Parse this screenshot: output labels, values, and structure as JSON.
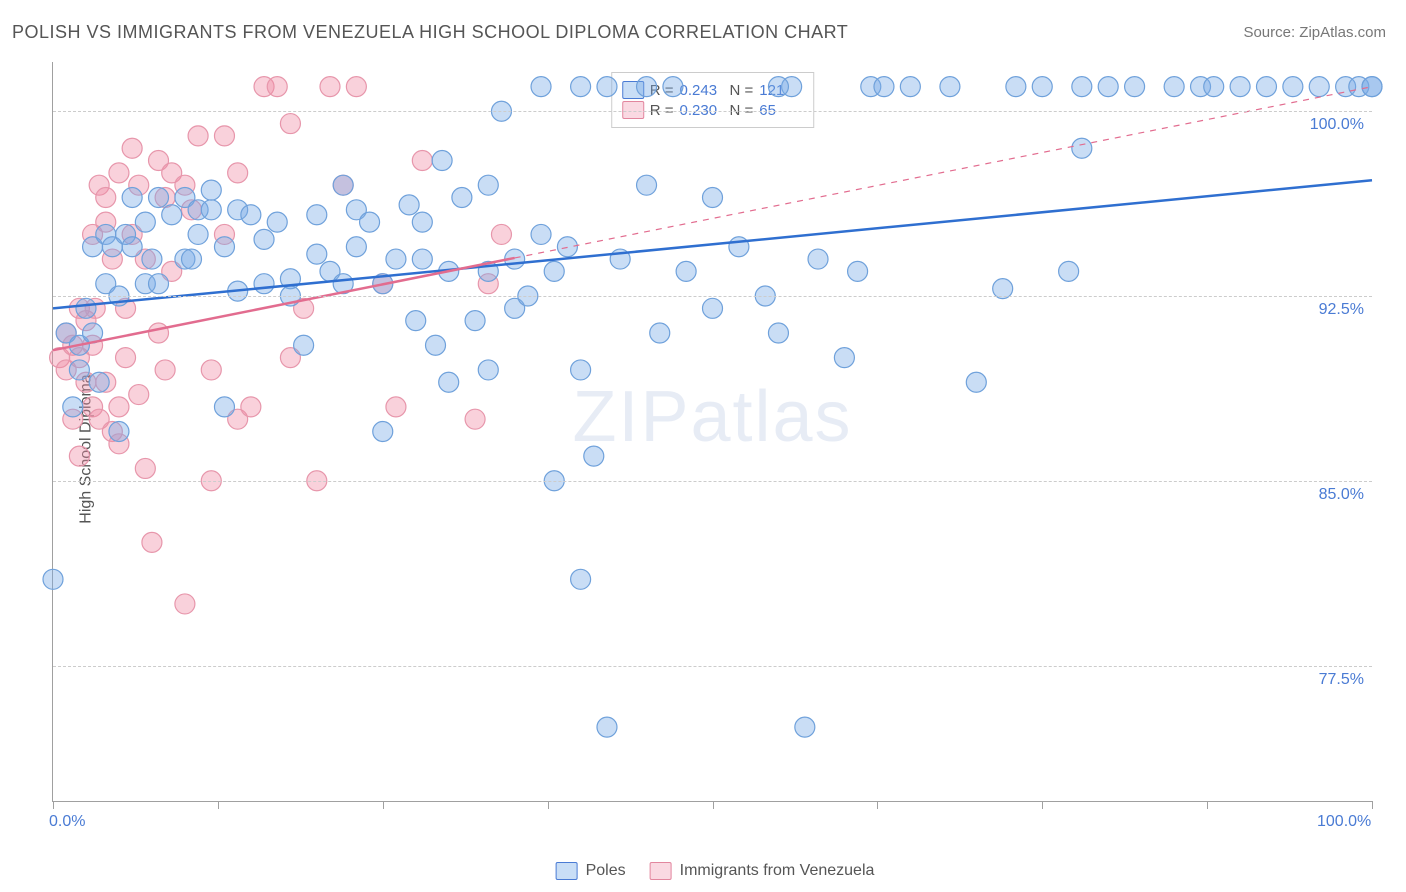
{
  "title": "POLISH VS IMMIGRANTS FROM VENEZUELA HIGH SCHOOL DIPLOMA CORRELATION CHART",
  "source_label": "Source: ZipAtlas.com",
  "y_axis_label": "High School Diploma",
  "watermark": "ZIPatlas",
  "chart": {
    "type": "scatter",
    "background_color": "#ffffff",
    "grid_color": "#cccccc",
    "axis_color": "#a0a0a0",
    "text_color_axis": "#4a7bd4",
    "text_color_label": "#555555",
    "xlim": [
      0,
      100
    ],
    "ylim": [
      72,
      102
    ],
    "x_ticks": [
      0,
      12.5,
      25,
      37.5,
      50,
      62.5,
      75,
      87.5,
      100
    ],
    "x_tick_labels": {
      "0": "0.0%",
      "100": "100.0%"
    },
    "y_ticks": [
      77.5,
      85.0,
      92.5,
      100.0
    ],
    "y_tick_labels": [
      "77.5%",
      "85.0%",
      "92.5%",
      "100.0%"
    ],
    "marker_radius": 10,
    "marker_opacity": 0.45,
    "line_width": 2.5,
    "series": [
      {
        "name": "Poles",
        "color_fill": "rgba(120,170,230,0.40)",
        "color_stroke": "#6fa1db",
        "line_color": "#2f6fd0",
        "R": "0.243",
        "N": "121",
        "trend": {
          "x1": 0,
          "y1": 92.0,
          "x2": 100,
          "y2": 97.2,
          "dash_from_x": null
        },
        "points": [
          [
            0,
            81
          ],
          [
            1,
            91
          ],
          [
            1.5,
            88
          ],
          [
            2,
            89.5
          ],
          [
            2,
            90.5
          ],
          [
            2.5,
            92
          ],
          [
            3,
            94.5
          ],
          [
            3,
            91
          ],
          [
            3.5,
            89
          ],
          [
            4,
            93
          ],
          [
            4,
            95
          ],
          [
            4.5,
            94.5
          ],
          [
            5,
            92.5
          ],
          [
            5,
            87
          ],
          [
            5.5,
            95
          ],
          [
            6,
            96.5
          ],
          [
            6,
            94.5
          ],
          [
            7,
            93
          ],
          [
            7,
            95.5
          ],
          [
            7.5,
            94
          ],
          [
            8,
            96.5
          ],
          [
            8,
            93
          ],
          [
            9,
            95.8
          ],
          [
            10,
            94
          ],
          [
            10,
            96.5
          ],
          [
            10.5,
            94
          ],
          [
            11,
            96
          ],
          [
            11,
            95
          ],
          [
            12,
            96
          ],
          [
            12,
            96.8
          ],
          [
            13,
            88
          ],
          [
            13,
            94.5
          ],
          [
            14,
            96
          ],
          [
            14,
            92.7
          ],
          [
            15,
            95.8
          ],
          [
            16,
            93
          ],
          [
            16,
            94.8
          ],
          [
            17,
            95.5
          ],
          [
            18,
            93.2
          ],
          [
            18,
            92.5
          ],
          [
            19,
            90.5
          ],
          [
            20,
            95.8
          ],
          [
            20,
            94.2
          ],
          [
            21,
            93.5
          ],
          [
            22,
            93.0
          ],
          [
            22,
            97
          ],
          [
            23,
            96
          ],
          [
            23,
            94.5
          ],
          [
            24,
            95.5
          ],
          [
            25,
            87
          ],
          [
            25,
            93.0
          ],
          [
            26,
            94
          ],
          [
            27,
            96.2
          ],
          [
            27.5,
            91.5
          ],
          [
            28,
            94
          ],
          [
            28,
            95.5
          ],
          [
            29,
            90.5
          ],
          [
            29.5,
            98
          ],
          [
            30,
            93.5
          ],
          [
            30,
            89
          ],
          [
            31,
            96.5
          ],
          [
            32,
            91.5
          ],
          [
            33,
            97
          ],
          [
            33,
            89.5
          ],
          [
            33,
            93.5
          ],
          [
            34,
            100
          ],
          [
            35,
            92
          ],
          [
            35,
            94
          ],
          [
            36,
            92.5
          ],
          [
            37,
            95
          ],
          [
            37,
            101
          ],
          [
            38,
            85
          ],
          [
            38,
            93.5
          ],
          [
            39,
            94.5
          ],
          [
            40,
            101
          ],
          [
            40,
            81
          ],
          [
            40,
            89.5
          ],
          [
            41,
            86
          ],
          [
            42,
            101
          ],
          [
            42,
            75
          ],
          [
            43,
            94
          ],
          [
            45,
            97
          ],
          [
            45,
            101
          ],
          [
            46,
            91
          ],
          [
            47,
            101
          ],
          [
            48,
            93.5
          ],
          [
            50,
            96.5
          ],
          [
            50,
            92
          ],
          [
            52,
            94.5
          ],
          [
            54,
            92.5
          ],
          [
            55,
            91
          ],
          [
            56,
            101
          ],
          [
            57,
            75
          ],
          [
            58,
            94
          ],
          [
            60,
            90
          ],
          [
            61,
            93.5
          ],
          [
            62,
            101
          ],
          [
            63,
            101
          ],
          [
            65,
            101
          ],
          [
            68,
            101
          ],
          [
            70,
            89
          ],
          [
            72,
            92.8
          ],
          [
            73,
            101
          ],
          [
            75,
            101
          ],
          [
            77,
            93.5
          ],
          [
            78,
            101
          ],
          [
            80,
            101
          ],
          [
            82,
            101
          ],
          [
            85,
            101
          ],
          [
            87,
            101
          ],
          [
            88,
            101
          ],
          [
            90,
            101
          ],
          [
            92,
            101
          ],
          [
            94,
            101
          ],
          [
            96,
            101
          ],
          [
            98,
            101
          ],
          [
            99,
            101
          ],
          [
            100,
            101
          ],
          [
            100,
            101
          ],
          [
            78,
            98.5
          ],
          [
            55,
            101
          ]
        ]
      },
      {
        "name": "Immigrants from Venezuela",
        "color_fill": "rgba(240,140,165,0.40)",
        "color_stroke": "#e796ab",
        "line_color": "#e26c8f",
        "R": "0.230",
        "N": "65",
        "trend": {
          "x1": 0,
          "y1": 90.3,
          "x2": 100,
          "y2": 101.0,
          "dash_from_x": 35
        },
        "points": [
          [
            0.5,
            90
          ],
          [
            1,
            91
          ],
          [
            1,
            89.5
          ],
          [
            1.5,
            90.5
          ],
          [
            1.5,
            87.5
          ],
          [
            2,
            86
          ],
          [
            2,
            90
          ],
          [
            2,
            92
          ],
          [
            2.5,
            91.5
          ],
          [
            2.5,
            89
          ],
          [
            3,
            95
          ],
          [
            3,
            88
          ],
          [
            3,
            90.5
          ],
          [
            3.2,
            92
          ],
          [
            3.5,
            87.5
          ],
          [
            3.5,
            97
          ],
          [
            4,
            96.5
          ],
          [
            4,
            95.5
          ],
          [
            4,
            89
          ],
          [
            4.5,
            94
          ],
          [
            4.5,
            87
          ],
          [
            5,
            88
          ],
          [
            5,
            86.5
          ],
          [
            5,
            97.5
          ],
          [
            5.5,
            90
          ],
          [
            5.5,
            92
          ],
          [
            6,
            98.5
          ],
          [
            6,
            95
          ],
          [
            6.5,
            97
          ],
          [
            6.5,
            88.5
          ],
          [
            7,
            85.5
          ],
          [
            7,
            94
          ],
          [
            7.5,
            82.5
          ],
          [
            8,
            98
          ],
          [
            8,
            91
          ],
          [
            8.5,
            96.5
          ],
          [
            8.5,
            89.5
          ],
          [
            9,
            97.5
          ],
          [
            9,
            93.5
          ],
          [
            10,
            97
          ],
          [
            10,
            80
          ],
          [
            10.5,
            96
          ],
          [
            11,
            99
          ],
          [
            12,
            89.5
          ],
          [
            12,
            85
          ],
          [
            13,
            95
          ],
          [
            13,
            99
          ],
          [
            14,
            87.5
          ],
          [
            14,
            97.5
          ],
          [
            15,
            88
          ],
          [
            16,
            101
          ],
          [
            17,
            101
          ],
          [
            18,
            99.5
          ],
          [
            18,
            90
          ],
          [
            19,
            92
          ],
          [
            20,
            85
          ],
          [
            21,
            101
          ],
          [
            22,
            97
          ],
          [
            23,
            101
          ],
          [
            25,
            93
          ],
          [
            26,
            88
          ],
          [
            28,
            98
          ],
          [
            32,
            87.5
          ],
          [
            33,
            93
          ],
          [
            34,
            95
          ]
        ]
      }
    ]
  },
  "bottom_legend": {
    "series1_label": "Poles",
    "series2_label": "Immigrants from Venezuela"
  }
}
